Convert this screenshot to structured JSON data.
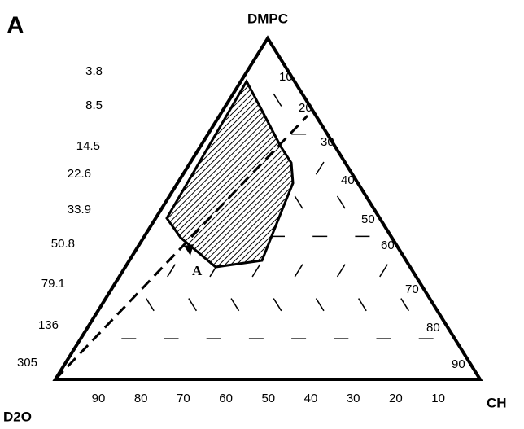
{
  "panel_label": "A",
  "vertices": {
    "top": "DMPC",
    "left": "D2O",
    "right": "CH"
  },
  "left_edge_labels": [
    "3.8",
    "8.5",
    "14.5",
    "22.6",
    "33.9",
    "50.8",
    "79.1",
    "136",
    "305"
  ],
  "right_edge_labels": [
    "10",
    "20",
    "30",
    "40",
    "50",
    "60",
    "70",
    "80",
    "90"
  ],
  "bottom_edge_labels": [
    "90",
    "80",
    "70",
    "60",
    "50",
    "40",
    "30",
    "20",
    "10"
  ],
  "point_label": "A"
}
